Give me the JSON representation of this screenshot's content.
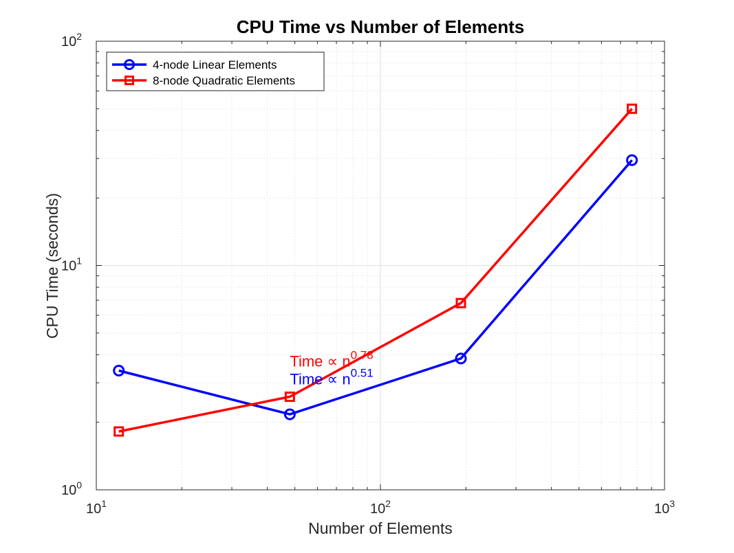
{
  "chart_data": {
    "type": "line",
    "title": "CPU Time vs Number of Elements",
    "xlabel": "Number of Elements",
    "ylabel": "CPU Time (seconds)",
    "xscale": "log",
    "yscale": "log",
    "xlim": [
      10,
      1000
    ],
    "ylim": [
      1,
      100
    ],
    "x_ticks": [
      {
        "value": 10,
        "base": "10",
        "exp": "1"
      },
      {
        "value": 100,
        "base": "10",
        "exp": "2"
      },
      {
        "value": 1000,
        "base": "10",
        "exp": "3"
      }
    ],
    "y_ticks": [
      {
        "value": 1,
        "base": "10",
        "exp": "0"
      },
      {
        "value": 10,
        "base": "10",
        "exp": "1"
      },
      {
        "value": 100,
        "base": "10",
        "exp": "2"
      }
    ],
    "grid": true,
    "minor_grid": true,
    "legend_position": "top-left",
    "series": [
      {
        "name": "4-node Linear Elements",
        "color": "#0000ff",
        "marker": "circle",
        "x": [
          12,
          48,
          192,
          768
        ],
        "y": [
          3.4,
          2.17,
          3.85,
          29.5
        ]
      },
      {
        "name": "8-node Quadratic Elements",
        "color": "#ff0000",
        "marker": "square",
        "x": [
          12,
          48,
          192,
          768
        ],
        "y": [
          1.82,
          2.6,
          6.8,
          50.0
        ]
      }
    ],
    "annotations": [
      {
        "base": "Time ∝ n",
        "exp": "0.78",
        "color": "#ff0000",
        "x": 48,
        "y": 3.55
      },
      {
        "base": "Time ∝ n",
        "exp": "0.51",
        "color": "#0000ff",
        "x": 48,
        "y": 2.95
      }
    ]
  }
}
